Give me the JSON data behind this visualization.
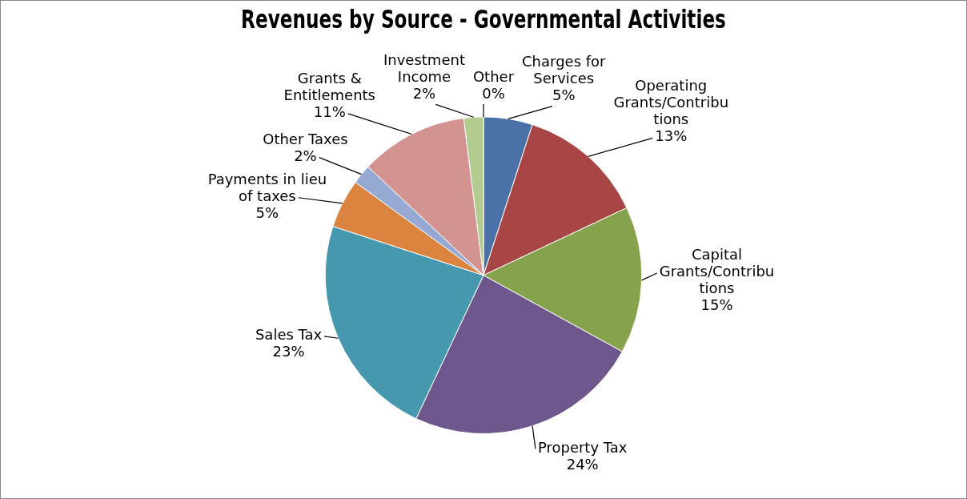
{
  "chart_data": {
    "type": "pie",
    "title": "Revenues by Source - Governmental Activities",
    "categories": [
      "Charges for Services",
      "Operating Grants/Contributions",
      "Capital Grants/Contributions",
      "Property Tax",
      "Sales Tax",
      "Payments in lieu of taxes",
      "Other Taxes",
      "Grants & Entitlements",
      "Investment Income",
      "Other"
    ],
    "values": [
      5,
      13,
      15,
      24,
      23,
      5,
      2,
      11,
      2,
      0
    ],
    "value_labels": [
      "5%",
      "13%",
      "15%",
      "24%",
      "23%",
      "5%",
      "2%",
      "11%",
      "2%",
      "0%"
    ],
    "colors": [
      "#4a71a8",
      "#a84645",
      "#87a24c",
      "#6d578c",
      "#4698ae",
      "#db8440",
      "#95a9d2",
      "#d39391",
      "#b4cb8f",
      "#a698bb"
    ],
    "legend": false
  }
}
